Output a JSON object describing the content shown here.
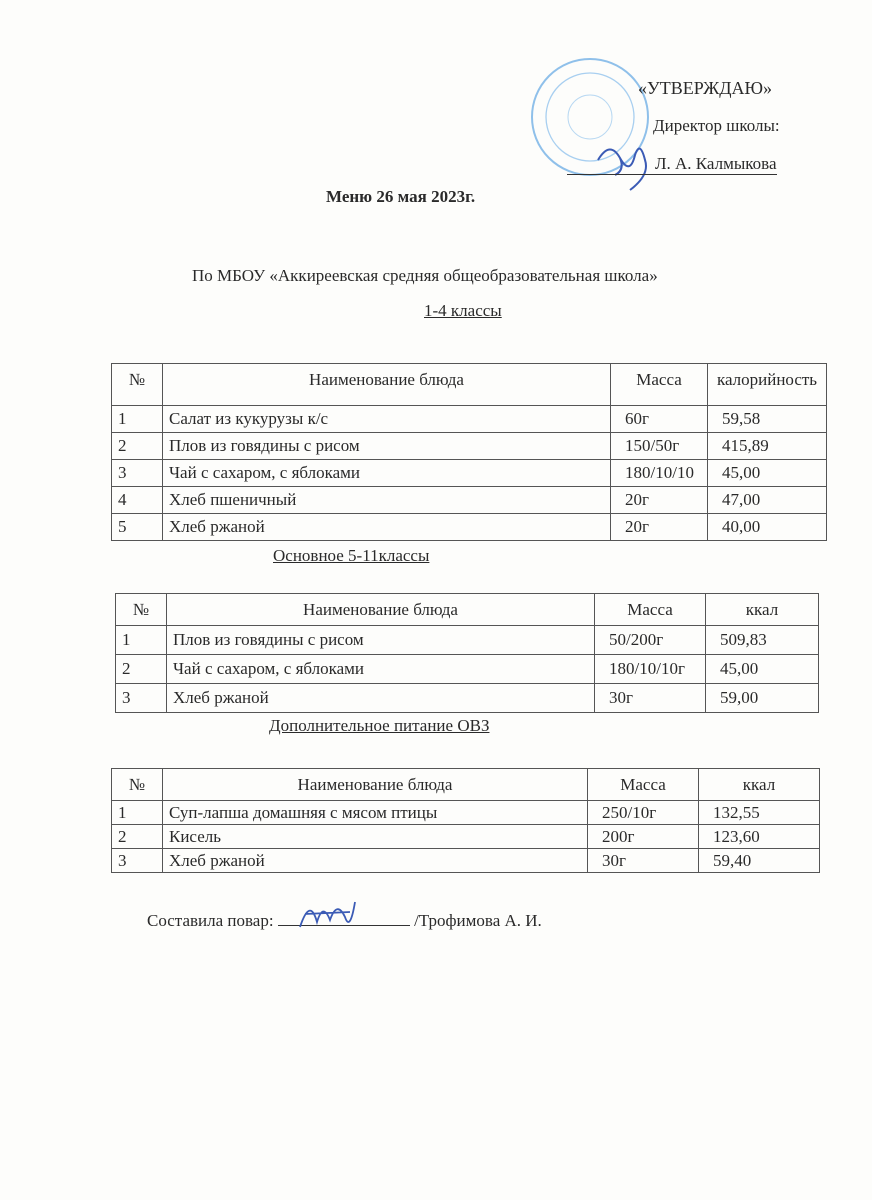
{
  "approval": {
    "title": "«УТВЕРЖДАЮ»",
    "position": "Директор школы:",
    "signatory": "Л. А. Калмыкова"
  },
  "title": "Меню 26 мая 2023г.",
  "school": "По МБОУ «Аккиреевская средняя общеобразовательная школа»",
  "section1": {
    "heading": "1-4 классы",
    "columns": [
      "№",
      "Наименование блюда",
      "Масса",
      "калорийность"
    ],
    "rows": [
      [
        "1",
        "Салат из кукурузы к/с",
        "60г",
        "59,58"
      ],
      [
        "2",
        "Плов из говядины с рисом",
        "150/50г",
        "415,89"
      ],
      [
        "3",
        "Чай с сахаром, с яблоками",
        "180/10/10",
        "45,00"
      ],
      [
        "4",
        "Хлеб пшеничный",
        "20г",
        "47,00"
      ],
      [
        "5",
        "Хлеб ржаной",
        "20г",
        "40,00"
      ]
    ]
  },
  "section2": {
    "heading": "Основное 5-11классы",
    "columns": [
      "№",
      "Наименование блюда",
      "Масса",
      "ккал"
    ],
    "rows": [
      [
        "1",
        "Плов из говядины с рисом",
        "50/200г",
        "509,83"
      ],
      [
        "2",
        "Чай с сахаром, с яблоками",
        "180/10/10г",
        "45,00"
      ],
      [
        "3",
        "Хлеб ржаной",
        "30г",
        "59,00"
      ]
    ]
  },
  "section3": {
    "heading": "Дополнительное питание ОВЗ",
    "columns": [
      "№",
      "Наименование блюда",
      "Масса",
      "ккал"
    ],
    "rows": [
      [
        "1",
        "Суп-лапша домашняя с мясом птицы",
        "250/10г",
        "132,55"
      ],
      [
        "2",
        "Кисель",
        "200г",
        "123,60"
      ],
      [
        "3",
        "Хлеб ржаной",
        "30г",
        "59,40"
      ]
    ]
  },
  "footer": {
    "label": "Составила повар:",
    "name": "/Трофимова А. И."
  },
  "colors": {
    "ink": "#2a2a2a",
    "stamp": "#4a8fd6"
  }
}
